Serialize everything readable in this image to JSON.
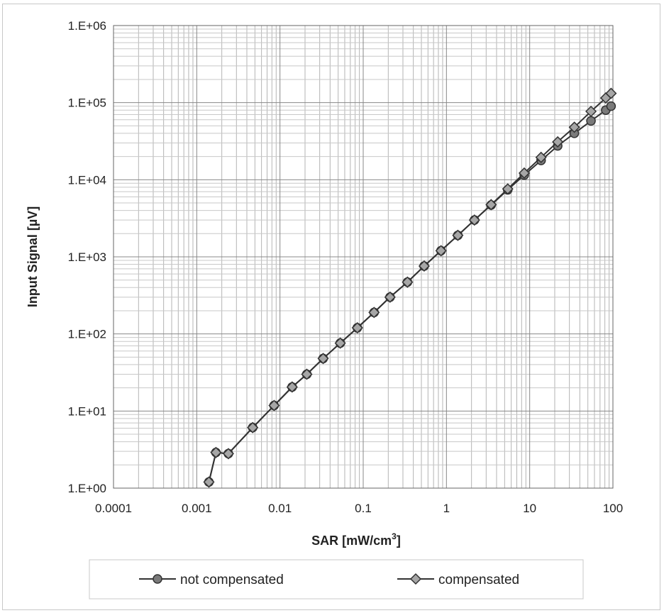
{
  "chart_data": {
    "type": "line",
    "xlabel": "SAR [mW/cm",
    "xlabel_sup": "3",
    "xlabel_end": "]",
    "ylabel": "Input Signal [µV]",
    "x_scale": "log",
    "y_scale": "log",
    "xlim": [
      0.0001,
      100
    ],
    "ylim": [
      1,
      1000000
    ],
    "x_tick_values": [
      0.0001,
      0.001,
      0.01,
      0.1,
      1,
      10,
      100
    ],
    "x_tick_labels": [
      "0.0001",
      "0.001",
      "0.01",
      "0.1",
      "1",
      "10",
      "100"
    ],
    "y_tick_values": [
      1,
      10,
      100,
      1000,
      10000,
      100000,
      1000000
    ],
    "y_tick_labels": [
      "1.E+00",
      "1.E+01",
      "1.E+02",
      "1.E+03",
      "1.E+04",
      "1.E+05",
      "1.E+06"
    ],
    "grid": true,
    "legend_position": "bottom",
    "series": [
      {
        "name": "not compensated",
        "marker": "circle",
        "color": "#7a7a7a",
        "points": [
          [
            0.0014,
            1.2
          ],
          [
            0.0017,
            2.9
          ],
          [
            0.0024,
            2.8
          ],
          [
            0.0047,
            6.1
          ],
          [
            0.0085,
            11.8
          ],
          [
            0.014,
            20.5
          ],
          [
            0.021,
            30
          ],
          [
            0.033,
            48
          ],
          [
            0.053,
            76
          ],
          [
            0.085,
            120
          ],
          [
            0.135,
            190
          ],
          [
            0.21,
            300
          ],
          [
            0.34,
            470
          ],
          [
            0.54,
            760
          ],
          [
            0.86,
            1200
          ],
          [
            1.37,
            1900
          ],
          [
            2.17,
            3000
          ],
          [
            3.44,
            4700
          ],
          [
            5.45,
            7400
          ],
          [
            8.6,
            11500
          ],
          [
            13.7,
            17800
          ],
          [
            21.7,
            27500
          ],
          [
            34.4,
            40000
          ],
          [
            54.5,
            58000
          ],
          [
            82,
            80000
          ],
          [
            95,
            90000
          ]
        ]
      },
      {
        "name": "compensated",
        "marker": "diamond",
        "color": "#a6a6a6",
        "points": [
          [
            0.0014,
            1.2
          ],
          [
            0.0017,
            2.9
          ],
          [
            0.0024,
            2.8
          ],
          [
            0.0047,
            6.1
          ],
          [
            0.0085,
            11.8
          ],
          [
            0.014,
            20.5
          ],
          [
            0.021,
            30
          ],
          [
            0.033,
            48
          ],
          [
            0.053,
            76
          ],
          [
            0.085,
            120
          ],
          [
            0.135,
            190
          ],
          [
            0.21,
            300
          ],
          [
            0.34,
            470
          ],
          [
            0.54,
            760
          ],
          [
            0.86,
            1200
          ],
          [
            1.37,
            1900
          ],
          [
            2.17,
            3000
          ],
          [
            3.44,
            4750
          ],
          [
            5.45,
            7600
          ],
          [
            8.6,
            12200
          ],
          [
            13.7,
            19500
          ],
          [
            21.7,
            31000
          ],
          [
            34.4,
            48000
          ],
          [
            54.5,
            77000
          ],
          [
            82,
            115000
          ],
          [
            95,
            132000
          ]
        ]
      }
    ]
  }
}
